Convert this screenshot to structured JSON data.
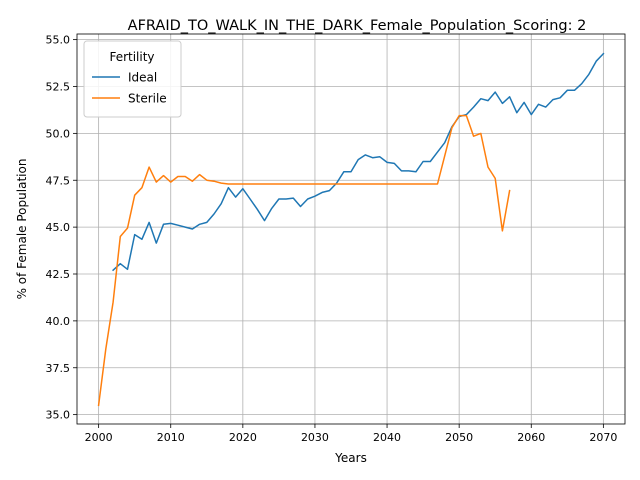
{
  "chart_data": {
    "type": "line",
    "title": "AFRAID_TO_WALK_IN_THE_DARK_Female_Population_Scoring: 2",
    "xlabel": "Years",
    "ylabel": "% of Female Population",
    "xlim": [
      1997,
      2073
    ],
    "ylim": [
      34.5,
      55.3
    ],
    "xticks": [
      2000,
      2010,
      2020,
      2030,
      2040,
      2050,
      2060,
      2070
    ],
    "yticks": [
      35.0,
      37.5,
      40.0,
      42.5,
      45.0,
      47.5,
      50.0,
      52.5,
      55.0
    ],
    "ytick_labels": [
      "35.0",
      "37.5",
      "40.0",
      "42.5",
      "45.0",
      "47.5",
      "50.0",
      "52.5",
      "55.0"
    ],
    "grid": true,
    "legend": {
      "title": "Fertility",
      "position": "upper left"
    },
    "series": [
      {
        "name": "Ideal",
        "color": "#1f77b4",
        "x": [
          2002,
          2003,
          2004,
          2005,
          2006,
          2007,
          2008,
          2009,
          2010,
          2011,
          2012,
          2013,
          2014,
          2015,
          2016,
          2017,
          2018,
          2019,
          2020,
          2021,
          2022,
          2023,
          2024,
          2025,
          2026,
          2027,
          2028,
          2029,
          2030,
          2031,
          2032,
          2033,
          2034,
          2035,
          2036,
          2037,
          2038,
          2039,
          2040,
          2041,
          2042,
          2043,
          2044,
          2045,
          2046,
          2047,
          2048,
          2049,
          2050,
          2051,
          2052,
          2053,
          2054,
          2055,
          2056,
          2057,
          2058,
          2059,
          2060,
          2061,
          2062,
          2063,
          2064,
          2065,
          2066,
          2067,
          2068,
          2069,
          2070
        ],
        "y": [
          42.7,
          43.05,
          42.75,
          44.6,
          44.35,
          45.25,
          44.15,
          45.15,
          45.2,
          45.1,
          45.0,
          44.9,
          45.15,
          45.25,
          45.7,
          46.25,
          47.1,
          46.6,
          47.05,
          46.5,
          45.95,
          45.35,
          46.0,
          46.5,
          46.5,
          46.55,
          46.1,
          46.5,
          46.65,
          46.85,
          46.95,
          47.35,
          47.95,
          47.95,
          48.6,
          48.85,
          48.7,
          48.75,
          48.45,
          48.4,
          48.0,
          48.0,
          47.95,
          48.5,
          48.5,
          49.0,
          49.5,
          50.35,
          50.9,
          51.0,
          51.4,
          51.85,
          51.75,
          52.2,
          51.6,
          51.95,
          51.1,
          51.65,
          51.0,
          51.55,
          51.4,
          51.8,
          51.9,
          52.3,
          52.3,
          52.65,
          53.15,
          53.85,
          54.25
        ]
      },
      {
        "name": "Sterile",
        "color": "#ff7f0e",
        "x": [
          2000,
          2001,
          2002,
          2003,
          2004,
          2005,
          2006,
          2007,
          2008,
          2009,
          2010,
          2011,
          2012,
          2013,
          2014,
          2015,
          2016,
          2017,
          2018,
          2019,
          2020,
          2021,
          2022,
          2023,
          2024,
          2025,
          2026,
          2027,
          2028,
          2029,
          2030,
          2031,
          2032,
          2033,
          2034,
          2035,
          2036,
          2037,
          2038,
          2039,
          2040,
          2041,
          2042,
          2043,
          2044,
          2045,
          2046,
          2047,
          2048,
          2049,
          2050,
          2051,
          2052,
          2053,
          2054,
          2055,
          2056,
          2057
        ],
        "y": [
          35.5,
          38.5,
          41.0,
          44.5,
          44.95,
          46.7,
          47.1,
          48.2,
          47.4,
          47.75,
          47.4,
          47.7,
          47.7,
          47.45,
          47.8,
          47.5,
          47.45,
          47.35,
          47.3,
          47.3,
          47.3,
          47.3,
          47.3,
          47.3,
          47.3,
          47.3,
          47.3,
          47.3,
          47.3,
          47.3,
          47.3,
          47.3,
          47.3,
          47.3,
          47.3,
          47.3,
          47.3,
          47.3,
          47.3,
          47.3,
          47.3,
          47.3,
          47.3,
          47.3,
          47.3,
          47.3,
          47.3,
          47.3,
          48.8,
          50.3,
          50.95,
          50.95,
          49.85,
          50.0,
          48.2,
          47.6,
          44.8,
          46.95
        ]
      }
    ]
  }
}
